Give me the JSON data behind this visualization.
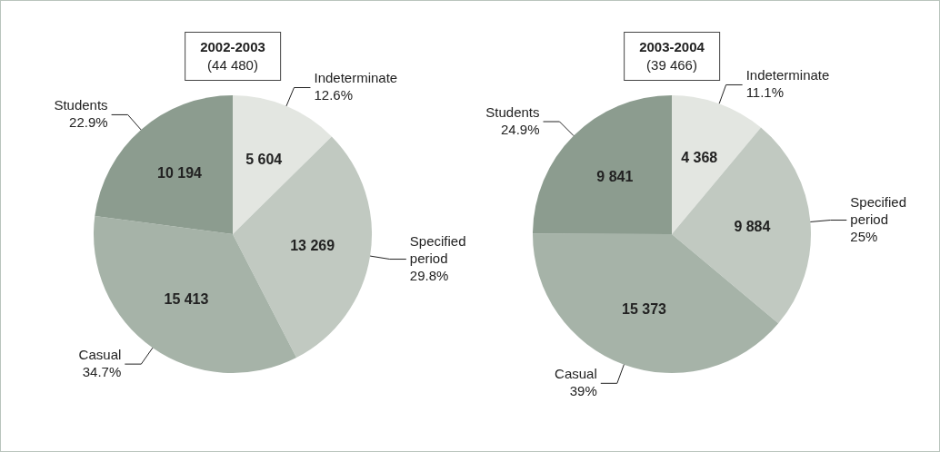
{
  "chart_data": [
    {
      "type": "pie",
      "title": "2002-2003",
      "subtitle": "(44 480)",
      "categories": [
        "Indeterminate",
        "Specified period",
        "Casual",
        "Students"
      ],
      "values": [
        5604,
        13269,
        15413,
        10194
      ],
      "colors": [
        "#e3e6e1",
        "#c1c9c1",
        "#a6b3a8",
        "#8c9c8f"
      ],
      "value_labels": [
        "5 604",
        "13 269",
        "15 413",
        "10 194"
      ],
      "annotations": [
        "12.6%",
        "29.8%",
        "34.7%",
        "22.9%"
      ],
      "legend": false
    },
    {
      "type": "pie",
      "title": "2003-2004",
      "subtitle": "(39 466)",
      "categories": [
        "Indeterminate",
        "Specified period",
        "Casual",
        "Students"
      ],
      "values": [
        4368,
        9884,
        15373,
        9841
      ],
      "colors": [
        "#e3e6e1",
        "#c1c9c1",
        "#a6b3a8",
        "#8c9c8f"
      ],
      "value_labels": [
        "4 368",
        "9 884",
        "15 373",
        "9 841"
      ],
      "annotations": [
        "11.1%",
        "25%",
        "39%",
        "24.9%"
      ],
      "legend": false
    }
  ]
}
